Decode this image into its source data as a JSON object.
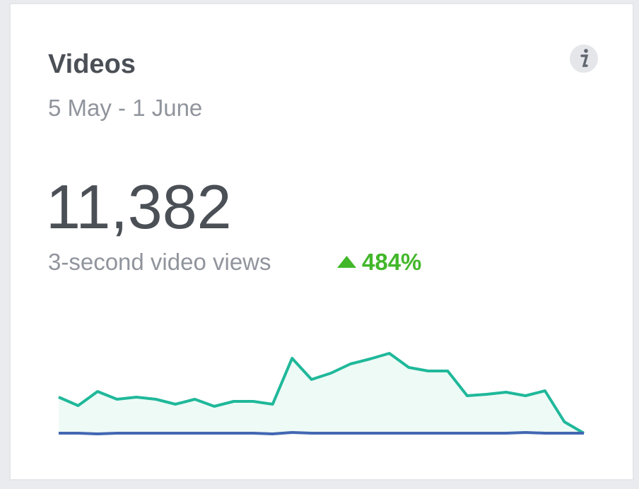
{
  "card": {
    "title": "Videos",
    "date_range": "5 May - 1 June",
    "total": "11,382",
    "metric_label": "3-second video views",
    "change": "484%",
    "sparkline": {
      "type": "area",
      "ylim": [
        0,
        120
      ],
      "series": [
        {
          "color": "#1fb89a",
          "fill": "#eefaf6",
          "values": [
            52,
            40,
            60,
            49,
            52,
            49,
            42,
            49,
            39,
            46,
            46,
            42,
            107,
            77,
            86,
            99,
            106,
            114,
            94,
            89,
            89,
            54,
            56,
            59,
            54,
            61,
            17,
            1
          ]
        },
        {
          "color": "#4267b2",
          "values": [
            1,
            1,
            0,
            1,
            1,
            1,
            1,
            1,
            1,
            1,
            1,
            0,
            2,
            1,
            1,
            1,
            1,
            1,
            1,
            1,
            1,
            1,
            1,
            1,
            2,
            1,
            1,
            1
          ]
        }
      ]
    }
  }
}
